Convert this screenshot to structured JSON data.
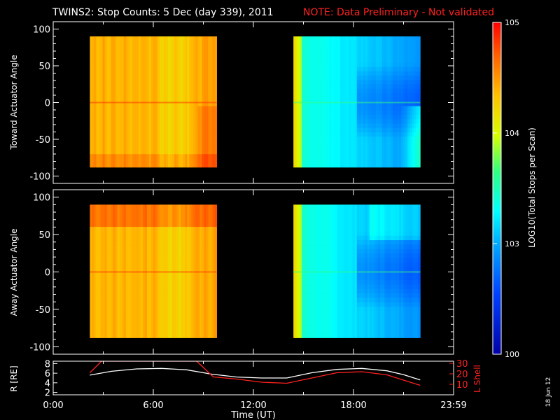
{
  "title": {
    "main": "TWINS2: Stop Counts:  5 Dec (day 339), 2011",
    "note": "NOTE: Data Preliminary - Not validated"
  },
  "side_stamp": "18 Jun 12",
  "colors": {
    "background": "#000000",
    "axes": "#ffffff",
    "note": "#ff2020",
    "lshell": "#ff2020",
    "radius": "#ffffff"
  },
  "chart_data": [
    {
      "id": "toward",
      "type": "heatmap",
      "ylabel": "Toward Actuator Angle",
      "ylim": [
        -110,
        110
      ],
      "yticks": [
        -100,
        -50,
        0,
        50,
        100
      ],
      "xlim": [
        0,
        24
      ],
      "x_data_spans_hours": [
        [
          2.2,
          9.8
        ],
        [
          14.4,
          22.0
        ]
      ],
      "y_data_range": [
        -88,
        90
      ],
      "description_levels": "approx LOG10 counts: ~10^4.3-10^4.6 in 02-09 UT segment, ~10^2.9-10^3.5 in 14-22 UT segment"
    },
    {
      "id": "away",
      "type": "heatmap",
      "ylabel": "Away Actuator Angle",
      "ylim": [
        -110,
        110
      ],
      "yticks": [
        -100,
        -50,
        0,
        50,
        100
      ],
      "xlim": [
        0,
        24
      ],
      "x_data_spans_hours": [
        [
          2.2,
          9.8
        ],
        [
          14.4,
          22.0
        ]
      ],
      "y_data_range": [
        -88,
        90
      ]
    },
    {
      "id": "orbit",
      "type": "line",
      "ylabel_left": "R [RE]",
      "ylabel_right": "L Shell",
      "yticks_left": [
        2,
        4,
        6,
        8
      ],
      "ylim_left": [
        1.5,
        8.5
      ],
      "yticks_right": [
        10,
        20,
        30
      ],
      "ylim_right": [
        0,
        32
      ],
      "xlabel": "Time (UT)",
      "xticks": [
        "0:00",
        "6:00",
        "12:00",
        "18:00",
        "23:59"
      ],
      "xtick_hours": [
        0,
        6,
        12,
        18,
        24
      ],
      "series": [
        {
          "name": "R [RE]",
          "axis": "left",
          "x": [
            2.2,
            3.5,
            5.0,
            6.5,
            8.0,
            9.5,
            11.0,
            12.5,
            14.0,
            15.5,
            17.0,
            18.5,
            20.0,
            21.0,
            22.0
          ],
          "values": [
            5.6,
            6.4,
            6.9,
            7.0,
            6.7,
            5.8,
            5.2,
            5.0,
            5.0,
            6.1,
            6.8,
            7.0,
            6.5,
            5.7,
            4.6
          ]
        },
        {
          "name": "L Shell",
          "axis": "right",
          "x": [
            2.2,
            2.9,
            8.6,
            9.6,
            11.0,
            12.5,
            14.0,
            15.5,
            17.0,
            18.5,
            20.0,
            21.0,
            22.0
          ],
          "values": [
            21,
            32,
            32,
            17,
            15,
            12,
            11,
            16,
            21,
            22,
            19,
            14,
            9
          ]
        }
      ]
    },
    {
      "id": "colorbar",
      "type": "colorbar",
      "label": "LOG10(Total Stops per Scan)",
      "ticks": [
        {
          "label": "10^5",
          "log": 5
        },
        {
          "label": "10^4",
          "log": 4
        },
        {
          "label": "10^3",
          "log": 3
        },
        {
          "label": "100",
          "log": 2
        }
      ],
      "range_log": [
        2,
        5
      ]
    }
  ]
}
